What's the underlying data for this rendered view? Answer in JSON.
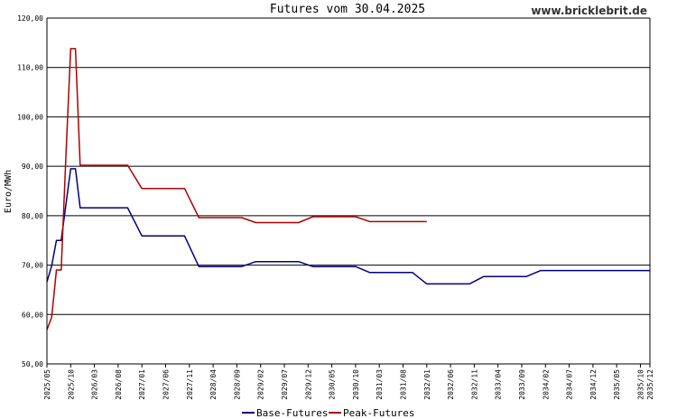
{
  "chart_data": {
    "type": "line",
    "title": "Futures vom 30.04.2025",
    "source": "www.bricklebrit.de",
    "ylabel": "Euro/MWh",
    "xlabel": "",
    "ylim": [
      50,
      120
    ],
    "yticks": [
      "50,00",
      "60,00",
      "70,00",
      "80,00",
      "90,00",
      "100,00",
      "110,00",
      "120,00"
    ],
    "grid": "horizontal",
    "legend_position": "bottom-center",
    "x_tick_labels": [
      "2025/05",
      "2025/10",
      "2026/03",
      "2026/08",
      "2027/01",
      "2027/06",
      "2027/11",
      "2028/04",
      "2028/09",
      "2029/02",
      "2029/07",
      "2029/12",
      "2030/05",
      "2030/10",
      "2031/03",
      "2031/08",
      "2032/01",
      "2032/06",
      "2032/11",
      "2033/04",
      "2033/09",
      "2034/02",
      "2034/07",
      "2034/12",
      "2035/05",
      "2035/10",
      "2035/12"
    ],
    "x": [
      "2025/05",
      "2025/06",
      "2025/07",
      "2025/08",
      "2025/09",
      "2025/10",
      "2025/11",
      "2025/12",
      "2026/01",
      "2026/04",
      "2026/07",
      "2026/10",
      "2027/01",
      "2027/04",
      "2027/07",
      "2027/10",
      "2028/01",
      "2028/04",
      "2028/07",
      "2028/10",
      "2029/01",
      "2029/04",
      "2029/07",
      "2029/10",
      "2030/01",
      "2030/04",
      "2030/07",
      "2030/10",
      "2031/01",
      "2031/04",
      "2031/07",
      "2031/10",
      "2032/01",
      "2032/04",
      "2032/07",
      "2032/10",
      "2033/01",
      "2033/04",
      "2033/07",
      "2033/10",
      "2034/01",
      "2034/04",
      "2034/07",
      "2034/10",
      "2035/01",
      "2035/04",
      "2035/07",
      "2035/10",
      "2035/12"
    ],
    "series": [
      {
        "name": "Base-Futures",
        "color": "#000080",
        "values": [
          66.6,
          69.9,
          75.0,
          75.0,
          82.2,
          89.5,
          89.5,
          81.6,
          81.6,
          81.6,
          81.6,
          81.6,
          75.9,
          75.9,
          75.9,
          75.9,
          69.7,
          69.7,
          69.7,
          69.7,
          70.7,
          70.7,
          70.7,
          70.7,
          69.7,
          69.7,
          69.7,
          69.7,
          68.5,
          68.5,
          68.5,
          68.5,
          66.2,
          66.2,
          66.2,
          66.2,
          67.7,
          67.7,
          67.7,
          67.7,
          68.9,
          68.9,
          68.9,
          68.9,
          68.9,
          68.9,
          68.9,
          68.9,
          68.9
        ]
      },
      {
        "name": "Peak-Futures",
        "color": "#b00000",
        "values": [
          56.9,
          59.5,
          69.0,
          69.0,
          92.0,
          113.8,
          113.8,
          90.2,
          90.2,
          90.2,
          90.2,
          90.2,
          85.5,
          85.5,
          85.5,
          85.5,
          79.6,
          79.6,
          79.6,
          79.6,
          78.6,
          78.6,
          78.6,
          78.6,
          79.8,
          79.8,
          79.8,
          79.8,
          78.8,
          78.8,
          78.8,
          78.8,
          78.8,
          null,
          null,
          null,
          null,
          null,
          null,
          null,
          null,
          null,
          null,
          null,
          null,
          null,
          null,
          null,
          null
        ]
      }
    ]
  }
}
